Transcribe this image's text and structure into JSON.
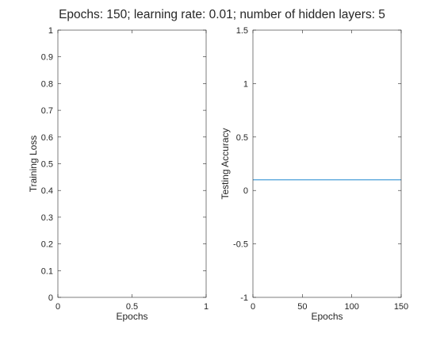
{
  "figure": {
    "title": "Epochs: 150; learning rate: 0.01; number of hidden layers: 5"
  },
  "chart_data": [
    {
      "type": "line",
      "title": "",
      "xlabel": "Epochs",
      "ylabel": "Training Loss",
      "xlim": [
        0,
        1
      ],
      "ylim": [
        0,
        1
      ],
      "x_ticks": [
        0,
        0.5,
        1
      ],
      "x_tick_labels": [
        "0",
        "0.5",
        "1"
      ],
      "y_ticks": [
        0,
        0.1,
        0.2,
        0.3,
        0.4,
        0.5,
        0.6,
        0.7,
        0.8,
        0.9,
        1
      ],
      "y_tick_labels": [
        "0",
        "0.1",
        "0.2",
        "0.3",
        "0.4",
        "0.5",
        "0.6",
        "0.7",
        "0.8",
        "0.9",
        "1"
      ],
      "grid": false,
      "series": []
    },
    {
      "type": "line",
      "title": "",
      "xlabel": "Epochs",
      "ylabel": "Testing Accuracy",
      "xlim": [
        0,
        150
      ],
      "ylim": [
        -1,
        1.5
      ],
      "x_ticks": [
        0,
        50,
        100,
        150
      ],
      "x_tick_labels": [
        "0",
        "50",
        "100",
        "150"
      ],
      "y_ticks": [
        -1,
        -0.5,
        0,
        0.5,
        1,
        1.5
      ],
      "y_tick_labels": [
        "-1",
        "-0.5",
        "0",
        "0.5",
        "1",
        "1.5"
      ],
      "grid": false,
      "series": [
        {
          "x": [
            0,
            150
          ],
          "y": [
            0.1,
            0.1
          ],
          "color": "#4a9fd8"
        }
      ]
    }
  ]
}
